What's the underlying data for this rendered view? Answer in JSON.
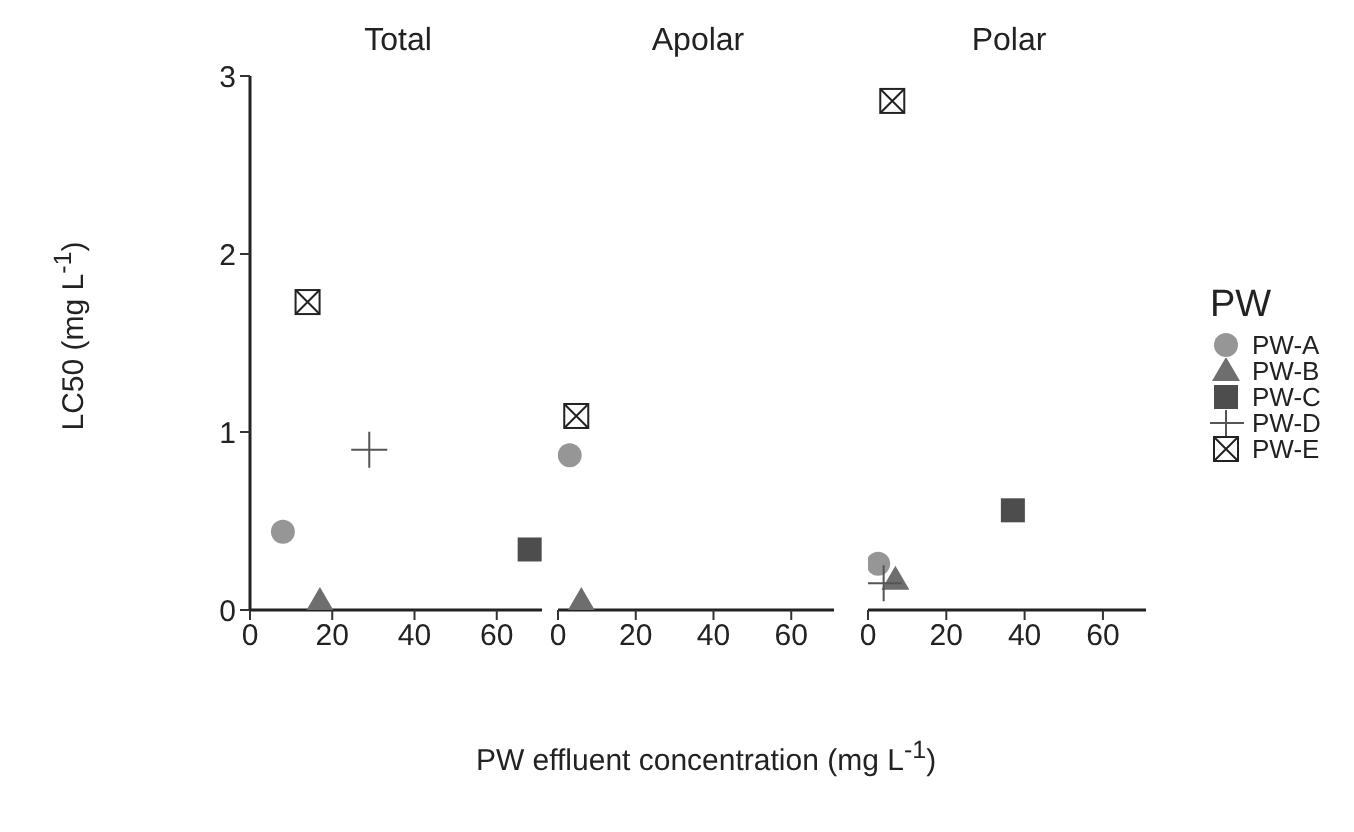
{
  "chart_data": [
    {
      "type": "scatter",
      "title": "Total",
      "ylabel": "LC50 (mg L$^{-1}$)",
      "legend_title": "PW",
      "legend": "right",
      "xlim": [
        0,
        71
      ],
      "xticks": [
        0,
        20,
        40,
        60
      ],
      "ylim": [
        0,
        3
      ],
      "yticks": [
        0,
        1,
        2,
        3
      ],
      "grid": false,
      "series": [
        {
          "name": "PW-A",
          "color": "#969696",
          "marker": "circle",
          "x": [
            8
          ],
          "values": [
            0.44
          ]
        },
        {
          "name": "PW-B",
          "color": "#6e6e6e",
          "marker": "triangle",
          "x": [
            17
          ],
          "values": [
            0.05
          ]
        },
        {
          "name": "PW-C",
          "color": "#4d4d4d",
          "marker": "square",
          "x": [
            68
          ],
          "values": [
            0.34
          ]
        },
        {
          "name": "PW-D",
          "color": "#555555",
          "marker": "cross",
          "x": [
            29
          ],
          "values": [
            0.9
          ]
        },
        {
          "name": "PW-E",
          "color": "#222222",
          "marker": "square-x",
          "x": [
            14
          ],
          "values": [
            1.73
          ]
        }
      ]
    },
    {
      "type": "scatter",
      "title": "Apolar",
      "xlabel": "PW effluent concentration (mg L$^{-1}$)",
      "xlim": [
        0,
        71
      ],
      "xticks": [
        0,
        20,
        40,
        60
      ],
      "ylim": [
        0,
        3
      ],
      "yticks": [
        0,
        1,
        2,
        3
      ],
      "tick_labels": "x",
      "grid": false,
      "series": [
        {
          "color": "#969696",
          "marker": "circle",
          "x": [
            3
          ],
          "values": [
            0.87
          ]
        },
        {
          "color": "#6e6e6e",
          "marker": "triangle",
          "x": [
            6
          ],
          "values": [
            0.05
          ]
        },
        {
          "color": "#222222",
          "marker": "square-x",
          "x": [
            4.7
          ],
          "values": [
            1.09
          ]
        }
      ]
    },
    {
      "type": "scatter",
      "title": "Polar",
      "xlim": [
        0,
        71
      ],
      "xticks": [
        0,
        20,
        40,
        60
      ],
      "ylim": [
        0,
        3
      ],
      "yticks": [
        0,
        1,
        2,
        3
      ],
      "tick_labels": "x",
      "grid": false,
      "series": [
        {
          "color": "#969696",
          "marker": "circle",
          "x": [
            2.6
          ],
          "values": [
            0.26
          ]
        },
        {
          "color": "#6e6e6e",
          "marker": "triangle",
          "x": [
            7
          ],
          "values": [
            0.17
          ]
        },
        {
          "color": "#4d4d4d",
          "marker": "square",
          "x": [
            37
          ],
          "values": [
            0.56
          ]
        },
        {
          "color": "#555555",
          "marker": "cross",
          "x": [
            4
          ],
          "values": [
            0.15
          ]
        },
        {
          "color": "#222222",
          "marker": "square-x",
          "x": [
            6.2
          ],
          "values": [
            2.86
          ]
        }
      ]
    }
  ]
}
